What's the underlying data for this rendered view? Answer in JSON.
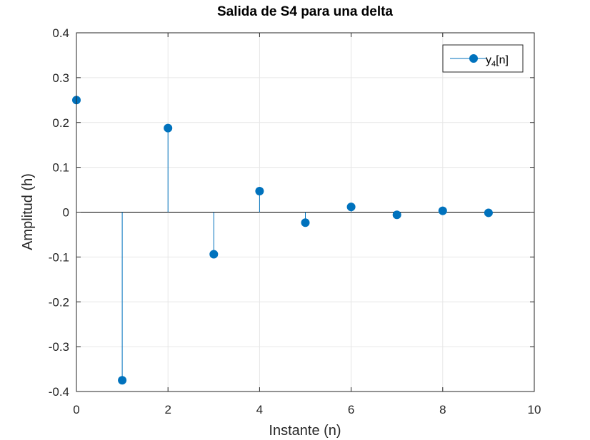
{
  "chart_data": {
    "type": "scatter",
    "plot_style": "stem",
    "title": "Salida de S4 para una delta",
    "xlabel": "Instante (n)",
    "ylabel": "Amplitud (h)",
    "xlim": [
      0,
      10
    ],
    "ylim": [
      -0.4,
      0.4
    ],
    "x_ticks": [
      0,
      2,
      4,
      6,
      8,
      10
    ],
    "y_ticks": [
      -0.4,
      -0.3,
      -0.2,
      -0.1,
      0,
      0.1,
      0.2,
      0.3,
      0.4
    ],
    "x_tick_labels": [
      "0",
      "2",
      "4",
      "6",
      "8",
      "10"
    ],
    "y_tick_labels": [
      "-0.4",
      "-0.3",
      "-0.2",
      "-0.1",
      "0",
      "0.1",
      "0.2",
      "0.3",
      "0.4"
    ],
    "grid": true,
    "baseline": 0,
    "legend_position": "top-right",
    "series": [
      {
        "name": "y4[n]",
        "legend_main": "y",
        "legend_sub": "4",
        "legend_tail": "[n]",
        "color": "#0072BD",
        "x": [
          0,
          1,
          2,
          3,
          4,
          5,
          6,
          7,
          8,
          9
        ],
        "values": [
          0.25,
          -0.375,
          0.1875,
          -0.09375,
          0.046875,
          -0.0234,
          0.0117,
          -0.0059,
          0.0029,
          -0.0015
        ]
      }
    ]
  },
  "colors": {
    "axes": "#262626",
    "grid": "#e6e6e6",
    "baseline": "#000000",
    "series": "#0072BD"
  }
}
